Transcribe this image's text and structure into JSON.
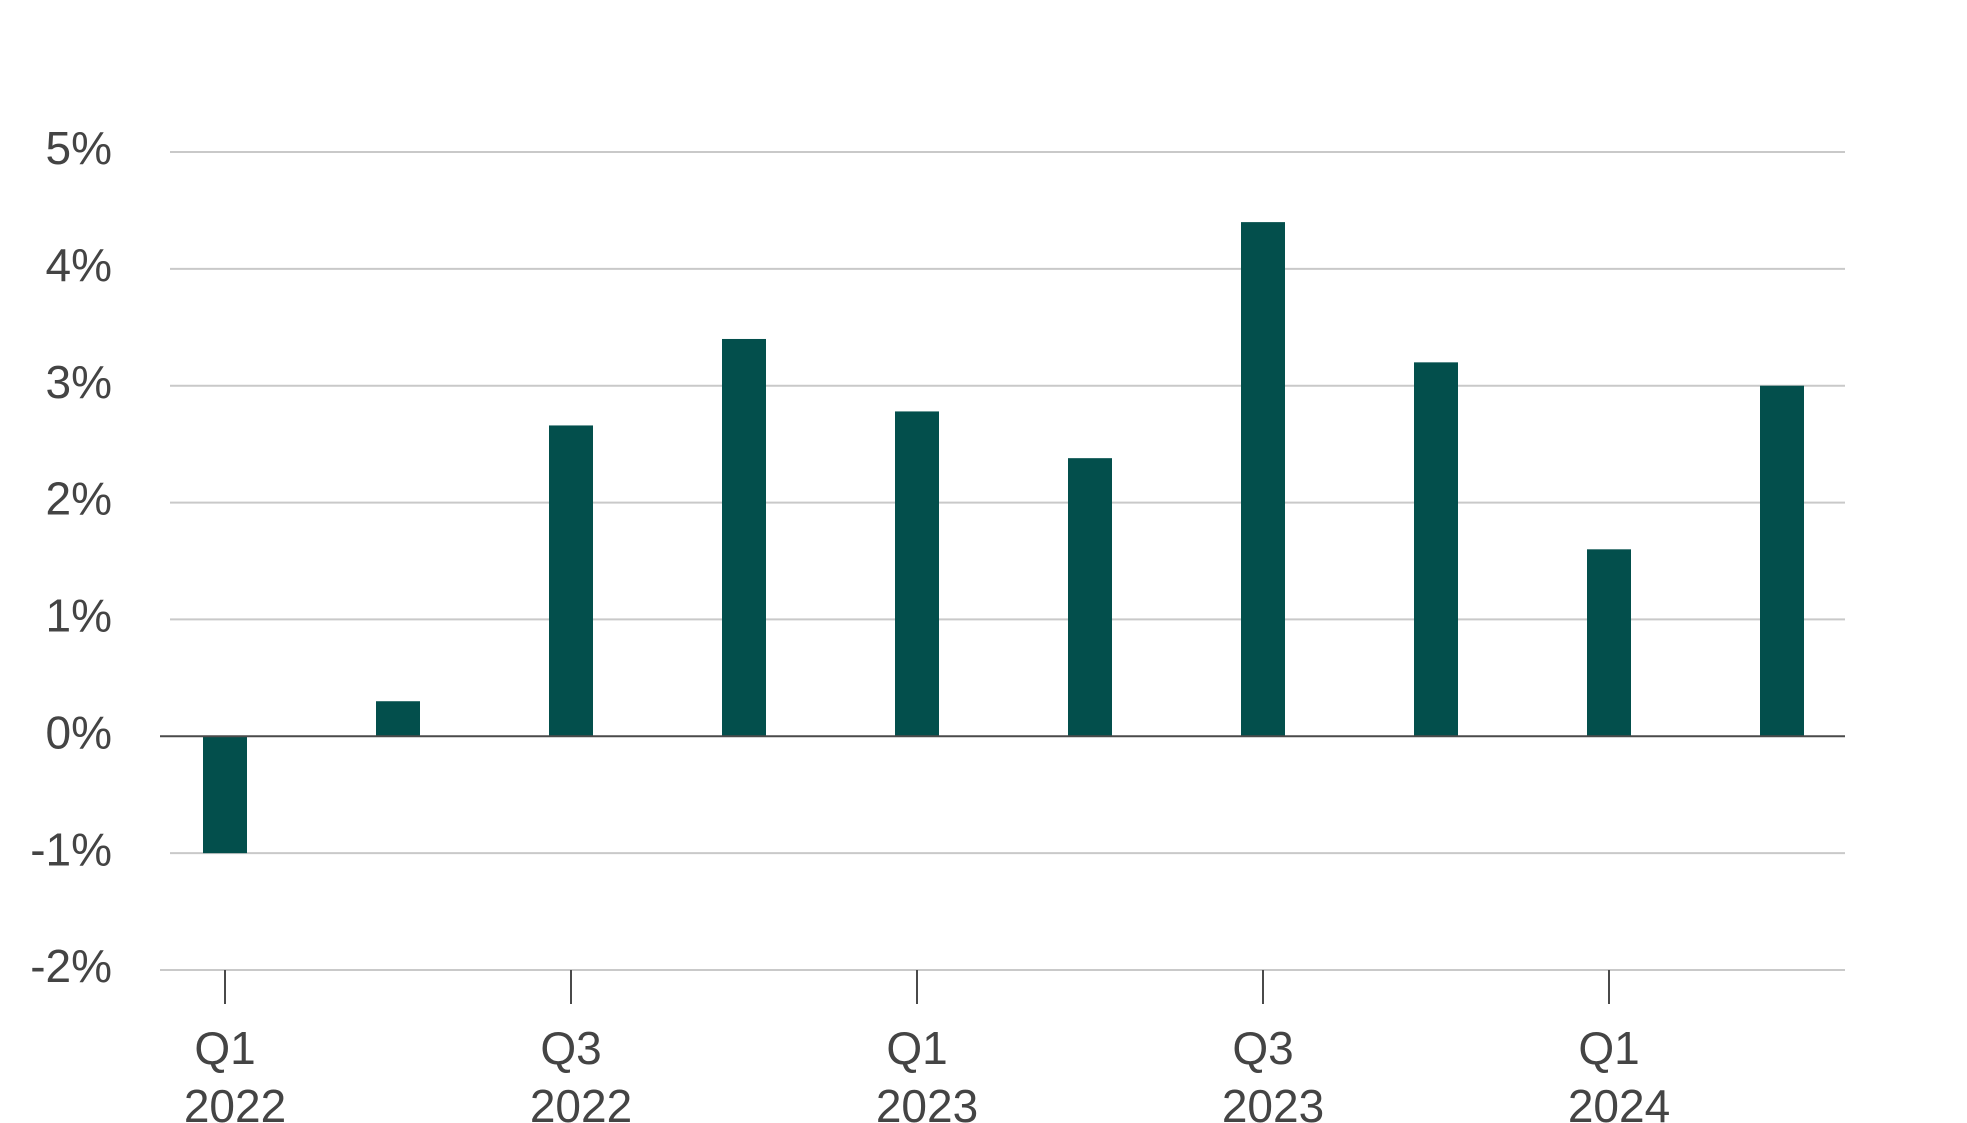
{
  "chart_data": {
    "type": "bar",
    "categories": [
      "Q1 2022",
      "Q2 2022",
      "Q3 2022",
      "Q4 2022",
      "Q1 2023",
      "Q2 2023",
      "Q3 2023",
      "Q4 2023",
      "Q1 2024",
      "Q2 2024"
    ],
    "values": [
      -1.0,
      0.3,
      2.66,
      3.4,
      2.78,
      2.38,
      4.4,
      3.2,
      1.6,
      3.0
    ],
    "ylim": [
      -2,
      5
    ],
    "y_ticks": [
      {
        "value": 5,
        "label": "5%"
      },
      {
        "value": 4,
        "label": "4%"
      },
      {
        "value": 3,
        "label": "3%"
      },
      {
        "value": 2,
        "label": "2%"
      },
      {
        "value": 1,
        "label": "1%"
      },
      {
        "value": 0,
        "label": "0%"
      },
      {
        "value": -1,
        "label": "-1%"
      },
      {
        "value": -2,
        "label": "-2%"
      }
    ],
    "x_ticks": [
      {
        "index": 0,
        "line1": "Q1",
        "line2": "2022"
      },
      {
        "index": 2,
        "line1": "Q3",
        "line2": "2022"
      },
      {
        "index": 4,
        "line1": "Q1",
        "line2": "2023"
      },
      {
        "index": 6,
        "line1": "Q3",
        "line2": "2023"
      },
      {
        "index": 8,
        "line1": "Q1",
        "line2": "2024"
      }
    ],
    "bar_color": "#034f4c",
    "grid": true,
    "title": "",
    "xlabel": "",
    "ylabel": ""
  }
}
